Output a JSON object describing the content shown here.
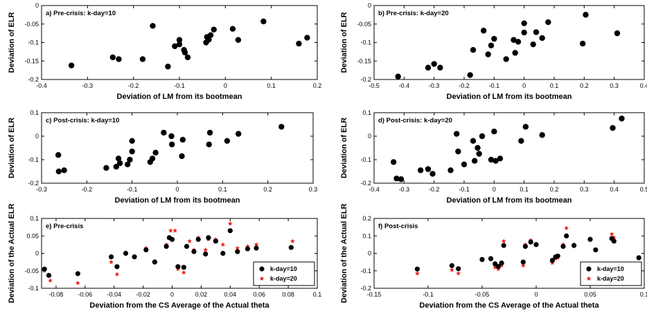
{
  "colors": {
    "k10": "#000000",
    "k20": "#e8231c"
  },
  "chart_data": [
    {
      "type": "scatter",
      "title": "a) Pre-crisis: k-day=10",
      "xlabel": "Deviation of LM from its bootmean",
      "ylabel": "Deviation of ELR",
      "xlim": [
        -0.4,
        0.2
      ],
      "ylim": [
        -0.2,
        0
      ],
      "xticks": [
        "-0.4",
        "-0.3",
        "-0.2",
        "-0.1",
        "0",
        "0.1",
        "0.2"
      ],
      "yticks": [
        "-0.2",
        "-0.15",
        "-0.1",
        "-0.05",
        "0"
      ],
      "series": [
        {
          "x": [
            -0.335,
            -0.245,
            -0.232,
            -0.18,
            -0.158,
            -0.125,
            -0.11,
            -0.1,
            -0.1,
            -0.09,
            -0.088,
            -0.082,
            -0.042,
            -0.04,
            -0.036,
            -0.032,
            -0.025,
            0.016,
            0.028,
            0.083,
            0.16,
            0.178
          ],
          "y": [
            -0.162,
            -0.14,
            -0.145,
            -0.145,
            -0.055,
            -0.165,
            -0.11,
            -0.105,
            -0.093,
            -0.12,
            -0.127,
            -0.14,
            -0.1,
            -0.085,
            -0.092,
            -0.08,
            -0.065,
            -0.063,
            -0.093,
            -0.043,
            -0.103,
            -0.087
          ]
        }
      ]
    },
    {
      "type": "scatter",
      "title": "b) Pre-crisis: k-day=20",
      "xlabel": "Deviation of LM from its bootmean",
      "ylabel": "Deviation of ELR",
      "xlim": [
        -0.5,
        0.4
      ],
      "ylim": [
        -0.2,
        0
      ],
      "xticks": [
        "-0.5",
        "-0.4",
        "-0.3",
        "-0.2",
        "-0.1",
        "0",
        "0.1",
        "0.2",
        "0.3",
        "0.4"
      ],
      "yticks": [
        "-0.2",
        "-0.15",
        "-0.1",
        "-0.05",
        "0"
      ],
      "series": [
        {
          "x": [
            -0.42,
            -0.32,
            -0.3,
            -0.28,
            -0.18,
            -0.17,
            -0.135,
            -0.12,
            -0.11,
            -0.1,
            -0.06,
            -0.035,
            -0.03,
            -0.02,
            0.0,
            0.0,
            0.03,
            0.04,
            0.06,
            0.08,
            0.195,
            0.205,
            0.31
          ],
          "y": [
            -0.192,
            -0.168,
            -0.158,
            -0.168,
            -0.188,
            -0.12,
            -0.068,
            -0.132,
            -0.108,
            -0.09,
            -0.145,
            -0.093,
            -0.128,
            -0.098,
            -0.048,
            -0.073,
            -0.105,
            -0.072,
            -0.088,
            -0.045,
            -0.103,
            -0.025,
            -0.075
          ]
        }
      ]
    },
    {
      "type": "scatter",
      "title": "c) Post-crisis: k-day=10",
      "xlabel": "Deviation of LM from its bootmean",
      "ylabel": "Deviation of ELR",
      "xlim": [
        -0.3,
        0.3
      ],
      "ylim": [
        -0.2,
        0.1
      ],
      "xticks": [
        "-0.3",
        "-0.2",
        "-0.1",
        "0",
        "0.1",
        "0.2",
        "0.3"
      ],
      "yticks": [
        "-0.2",
        "-0.1",
        "0",
        "0.1"
      ],
      "series": [
        {
          "x": [
            -0.263,
            -0.262,
            -0.25,
            -0.157,
            -0.135,
            -0.13,
            -0.127,
            -0.11,
            -0.105,
            -0.1,
            -0.1,
            -0.06,
            -0.055,
            -0.048,
            -0.03,
            -0.013,
            -0.012,
            0.01,
            0.012,
            0.07,
            0.072,
            0.11,
            0.135,
            0.23
          ],
          "y": [
            -0.08,
            -0.15,
            -0.145,
            -0.135,
            -0.13,
            -0.095,
            -0.115,
            -0.12,
            -0.1,
            -0.065,
            -0.02,
            -0.11,
            -0.095,
            -0.07,
            0.015,
            0.0,
            -0.035,
            -0.085,
            -0.015,
            -0.035,
            0.015,
            -0.02,
            0.01,
            0.04
          ]
        }
      ]
    },
    {
      "type": "scatter",
      "title": "d) Post-crisis: k-day=20",
      "xlabel": "Deviation of LM from its bootmean",
      "ylabel": "Deviation of ELR",
      "xlim": [
        -0.4,
        0.5
      ],
      "ylim": [
        -0.2,
        0.1
      ],
      "xticks": [
        "-0.4",
        "-0.3",
        "-0.2",
        "-0.1",
        "0",
        "0.1",
        "0.2",
        "0.3",
        "0.4",
        "0.5"
      ],
      "yticks": [
        "-0.2",
        "-0.1",
        "0",
        "0.1"
      ],
      "series": [
        {
          "x": [
            -0.335,
            -0.325,
            -0.31,
            -0.245,
            -0.22,
            -0.205,
            -0.145,
            -0.125,
            -0.12,
            -0.1,
            -0.07,
            -0.065,
            -0.055,
            -0.05,
            -0.04,
            -0.01,
            0.0,
            0.005,
            0.02,
            0.09,
            0.105,
            0.16,
            0.395,
            0.425
          ],
          "y": [
            -0.11,
            -0.18,
            -0.183,
            -0.145,
            -0.14,
            -0.16,
            -0.145,
            0.01,
            -0.065,
            -0.12,
            -0.02,
            -0.105,
            -0.05,
            -0.075,
            0.0,
            -0.1,
            0.02,
            -0.105,
            -0.095,
            -0.02,
            0.04,
            0.005,
            0.035,
            0.075
          ]
        }
      ]
    },
    {
      "type": "scatter",
      "title": "e) Pre-crisis",
      "xlabel": "Deviation from the CS Average of the Actual theta",
      "ylabel": "Deviation of the Actual ELR",
      "xlim": [
        -0.09,
        0.1
      ],
      "ylim": [
        -0.1,
        0.1
      ],
      "xticks": [
        "-0.08",
        "-0.06",
        "-0.04",
        "-0.02",
        "0",
        "0.02",
        "0.04",
        "0.06",
        "0.08",
        "0.1"
      ],
      "yticks": [
        "-0.1",
        "-0.05",
        "0",
        "0.05",
        "0.1"
      ],
      "legend": {
        "position": "bottom-right",
        "entries": [
          "k-day=10",
          "k-day=20"
        ]
      },
      "series": [
        {
          "name": "k-day=10",
          "x": [
            -0.088,
            -0.085,
            -0.065,
            -0.042,
            -0.038,
            -0.032,
            -0.026,
            -0.018,
            -0.012,
            -0.004,
            -0.002,
            0.0,
            0.004,
            0.008,
            0.01,
            0.015,
            0.018,
            0.023,
            0.025,
            0.03,
            0.035,
            0.04,
            0.045,
            0.052,
            0.058,
            0.082
          ],
          "y": [
            -0.045,
            -0.063,
            -0.058,
            -0.01,
            -0.038,
            0.0,
            -0.01,
            0.01,
            -0.025,
            0.02,
            0.045,
            0.04,
            -0.038,
            -0.04,
            0.02,
            0.005,
            0.04,
            -0.002,
            0.045,
            0.035,
            0.0,
            0.065,
            0.005,
            0.013,
            0.015,
            0.017
          ]
        },
        {
          "name": "k-day=20",
          "x": [
            -0.088,
            -0.084,
            -0.065,
            -0.042,
            -0.038,
            -0.032,
            -0.026,
            -0.018,
            -0.012,
            -0.004,
            -0.001,
            0.002,
            0.004,
            0.008,
            0.012,
            0.015,
            0.018,
            0.023,
            0.025,
            0.03,
            0.035,
            0.04,
            0.045,
            0.052,
            0.058,
            0.083
          ],
          "y": [
            -0.05,
            -0.078,
            -0.085,
            -0.025,
            -0.06,
            0.002,
            -0.008,
            0.015,
            -0.022,
            0.025,
            0.065,
            0.065,
            -0.045,
            -0.055,
            0.035,
            0.01,
            0.045,
            0.01,
            0.04,
            0.04,
            0.025,
            0.085,
            0.015,
            0.02,
            0.025,
            0.035
          ]
        }
      ]
    },
    {
      "type": "scatter",
      "title": "f) Post-crisis",
      "xlabel": "Deviation from the CS Average of the Actual theta",
      "ylabel": "Deviation of the Actual ELR",
      "xlim": [
        -0.15,
        0.1
      ],
      "ylim": [
        -0.2,
        0.2
      ],
      "xticks": [
        "-0.15",
        "-0.1",
        "-0.05",
        "0",
        "0.05",
        "0.1"
      ],
      "yticks": [
        "-0.2",
        "-0.1",
        "0",
        "0.1",
        "0.2"
      ],
      "legend": {
        "position": "bottom-right",
        "entries": [
          "k-day=10",
          "k-day=20"
        ]
      },
      "series": [
        {
          "name": "k-day=10",
          "x": [
            -0.11,
            -0.078,
            -0.072,
            -0.05,
            -0.042,
            -0.038,
            -0.035,
            -0.032,
            -0.03,
            -0.012,
            -0.01,
            -0.005,
            0.0,
            0.015,
            0.018,
            0.02,
            0.025,
            0.028,
            0.035,
            0.05,
            0.055,
            0.07,
            0.072,
            0.095
          ],
          "y": [
            -0.09,
            -0.07,
            -0.088,
            -0.035,
            -0.03,
            -0.06,
            -0.075,
            -0.055,
            0.045,
            -0.05,
            0.04,
            0.065,
            0.05,
            -0.04,
            -0.02,
            -0.015,
            0.04,
            0.1,
            0.045,
            0.08,
            0.02,
            0.085,
            0.07,
            -0.025
          ]
        },
        {
          "name": "k-day=20",
          "x": [
            -0.11,
            -0.078,
            -0.072,
            -0.05,
            -0.042,
            -0.038,
            -0.035,
            -0.032,
            -0.03,
            -0.012,
            -0.01,
            -0.005,
            0.0,
            0.015,
            0.018,
            0.02,
            0.025,
            0.028,
            0.035,
            0.05,
            0.055,
            0.07,
            0.072,
            0.095
          ],
          "y": [
            -0.115,
            -0.095,
            -0.115,
            -0.04,
            -0.035,
            -0.08,
            -0.09,
            -0.07,
            0.07,
            -0.07,
            0.05,
            0.075,
            0.055,
            -0.055,
            -0.03,
            -0.025,
            0.05,
            0.145,
            0.05,
            0.085,
            0.02,
            0.11,
            0.09,
            -0.03
          ]
        }
      ]
    }
  ]
}
